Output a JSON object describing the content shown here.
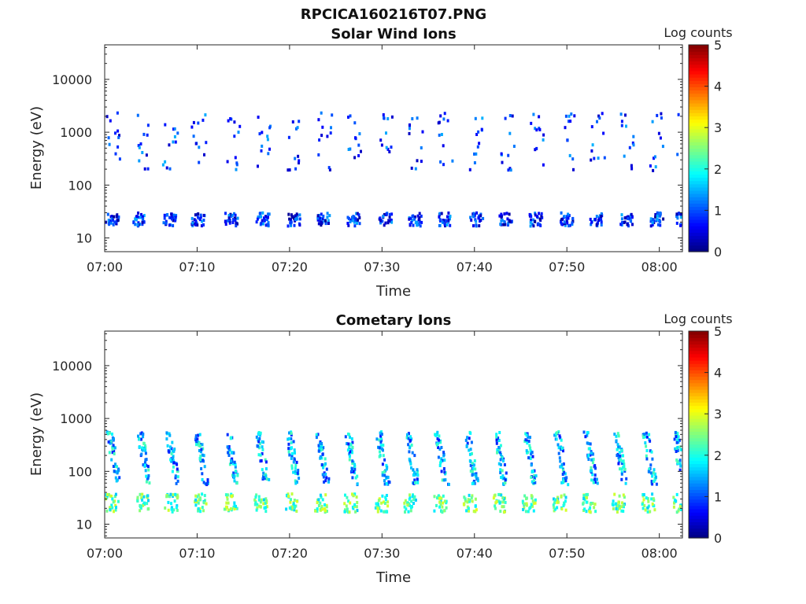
{
  "figure_title": "RPCICA160216T07.PNG",
  "chart_data": [
    {
      "type": "heatmap",
      "title": "Solar Wind Ions",
      "xlabel": "Time",
      "ylabel": "Energy (eV)",
      "x_ticks": [
        "07:00",
        "07:10",
        "07:20",
        "07:30",
        "07:40",
        "07:50",
        "08:00"
      ],
      "x_range_minutes": [
        0,
        62.5
      ],
      "y_scale": "log",
      "y_ticks": [
        "10",
        "100",
        "1000",
        "10000"
      ],
      "y_range": [
        5.5,
        45000
      ],
      "colorbar": {
        "label": "Log counts",
        "min": 0,
        "max": 5,
        "ticks": [
          "0",
          "1",
          "2",
          "3",
          "4",
          "5"
        ],
        "colormap": "jet"
      },
      "burst_times_min": [
        0,
        3,
        6.2,
        9.3,
        12.9,
        16.3,
        19.7,
        22.9,
        26.1,
        29.6,
        32.8,
        35.9,
        39.4,
        42.6,
        45.8,
        49.2,
        52.4,
        55.7,
        58.9,
        61.7
      ],
      "features": {
        "low_band_energy_eV": [
          18,
          32
        ],
        "low_band_log_counts": 0.8,
        "high_band_energy_eV": [
          200,
          2500
        ],
        "high_band_log_counts": 0.9
      }
    },
    {
      "type": "heatmap",
      "title": "Cometary Ions",
      "xlabel": "Time",
      "ylabel": "Energy (eV)",
      "x_ticks": [
        "07:00",
        "07:10",
        "07:20",
        "07:30",
        "07:40",
        "07:50",
        "08:00"
      ],
      "x_range_minutes": [
        0,
        62.5
      ],
      "y_scale": "log",
      "y_ticks": [
        "10",
        "100",
        "1000",
        "10000"
      ],
      "y_range": [
        5.5,
        45000
      ],
      "colorbar": {
        "label": "Log counts",
        "min": 0,
        "max": 5,
        "ticks": [
          "0",
          "1",
          "2",
          "3",
          "4",
          "5"
        ],
        "colormap": "jet"
      },
      "burst_times_min": [
        0,
        3.3,
        6.4,
        9.5,
        12.8,
        16.1,
        19.4,
        22.6,
        25.8,
        29.1,
        32.3,
        35.5,
        38.7,
        41.9,
        45.1,
        48.4,
        51.6,
        54.8,
        58.0,
        61.2
      ],
      "features": {
        "low_band_energy_eV": [
          18,
          40
        ],
        "low_band_log_counts": 2.3,
        "arc_energy_eV": [
          60,
          600
        ],
        "arc_log_counts": 1.5
      }
    }
  ]
}
